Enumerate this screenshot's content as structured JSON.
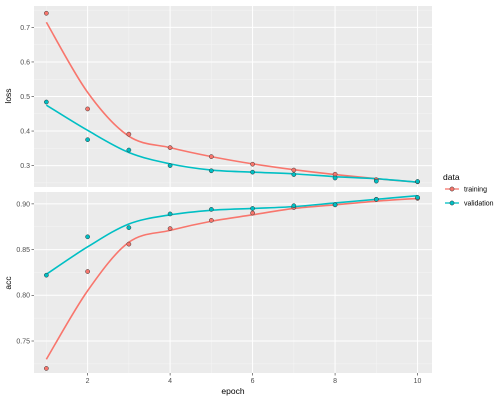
{
  "chart_data": {
    "type": "line",
    "xlabel": "epoch",
    "x": [
      1,
      2,
      3,
      4,
      5,
      6,
      7,
      8,
      9,
      10
    ],
    "xlim": [
      0.7,
      10.35
    ],
    "xticks": [
      2,
      4,
      6,
      8,
      10
    ],
    "legend": {
      "title": "data",
      "position": "right",
      "entries": [
        {
          "name": "training",
          "color": "#F8766D"
        },
        {
          "name": "validation",
          "color": "#00BFC4"
        }
      ]
    },
    "grid": true,
    "panels": [
      {
        "ylabel": "loss",
        "ylim": [
          0.238,
          0.762
        ],
        "yticks": [
          0.3,
          0.4,
          0.5,
          0.6,
          0.7
        ],
        "series": [
          {
            "name": "training",
            "color": "#F8766D",
            "points": [
              0.741,
              0.464,
              0.391,
              0.352,
              0.326,
              0.304,
              0.287,
              0.275,
              0.259,
              0.253
            ],
            "smooth": [
              0.715,
              0.512,
              0.385,
              0.352,
              0.326,
              0.305,
              0.288,
              0.274,
              0.262,
              0.252
            ]
          },
          {
            "name": "validation",
            "color": "#00BFC4",
            "points": [
              0.484,
              0.375,
              0.345,
              0.3,
              0.285,
              0.281,
              0.274,
              0.264,
              0.255,
              0.254
            ],
            "smooth": [
              0.475,
              0.402,
              0.338,
              0.305,
              0.287,
              0.281,
              0.276,
              0.268,
              0.262,
              0.252
            ]
          }
        ]
      },
      {
        "ylabel": "acc",
        "ylim": [
          0.715,
          0.913
        ],
        "yticks": [
          0.75,
          0.8,
          0.85,
          0.9
        ],
        "series": [
          {
            "name": "training",
            "color": "#F8766D",
            "points": [
              0.72,
              0.826,
              0.856,
              0.873,
              0.882,
              0.89,
              0.896,
              0.899,
              0.905,
              0.906
            ],
            "smooth": [
              0.73,
              0.805,
              0.858,
              0.871,
              0.881,
              0.888,
              0.895,
              0.899,
              0.903,
              0.906
            ]
          },
          {
            "name": "validation",
            "color": "#00BFC4",
            "points": [
              0.822,
              0.864,
              0.874,
              0.889,
              0.894,
              0.895,
              0.898,
              0.899,
              0.905,
              0.907
            ],
            "smooth": [
              0.823,
              0.853,
              0.878,
              0.888,
              0.893,
              0.895,
              0.897,
              0.901,
              0.905,
              0.909
            ]
          }
        ]
      }
    ]
  }
}
